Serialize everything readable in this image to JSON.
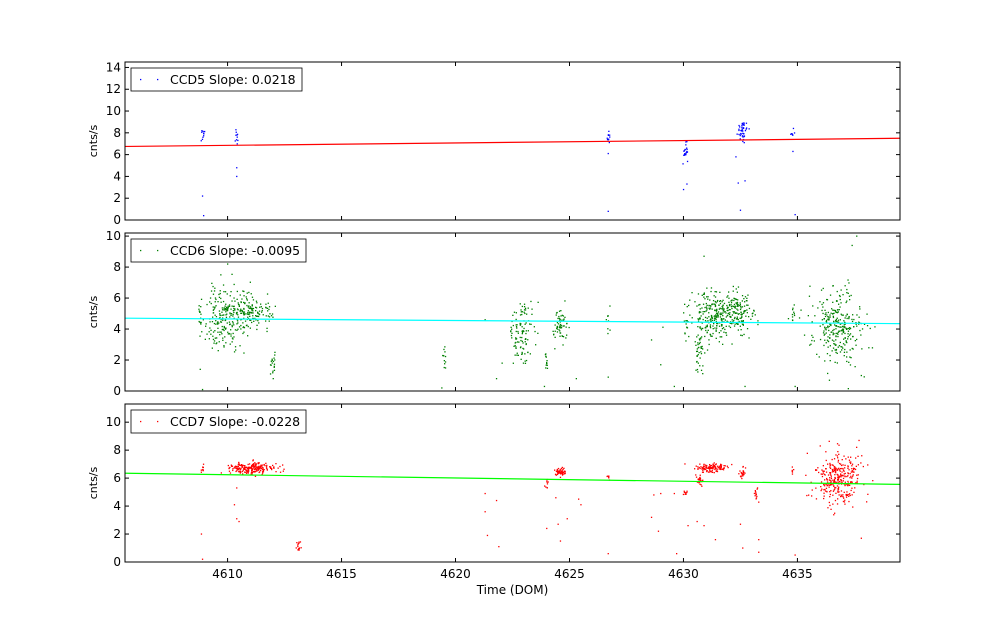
{
  "chart_data": [
    {
      "type": "scatter",
      "xlim": [
        4605.5,
        4639.5
      ],
      "ylim": [
        0,
        14.5
      ],
      "xticks": [
        4610,
        4615,
        4620,
        4625,
        4630,
        4635
      ],
      "yticks": [
        0,
        2,
        4,
        6,
        8,
        10,
        12,
        14
      ],
      "show_xtick_labels": false,
      "xlabel": "",
      "ylabel": "cnts/s",
      "legend": "CCD5 Slope: 0.0218",
      "legend_position": "top-left",
      "point_color": "#0000ff",
      "fit_color": "#ff0000",
      "fit_line": {
        "x": [
          4605.5,
          4639.5
        ],
        "y": [
          6.75,
          7.5
        ]
      },
      "clusters": [
        {
          "x": 4608.9,
          "xspread": 0.05,
          "y": 7.9,
          "yspread": 0.35,
          "n": 10
        },
        {
          "x": 4610.4,
          "xspread": 0.05,
          "y": 7.5,
          "yspread": 0.45,
          "n": 10
        },
        {
          "x": 4626.7,
          "xspread": 0.05,
          "y": 7.4,
          "yspread": 0.3,
          "n": 10
        },
        {
          "x": 4630.1,
          "xspread": 0.06,
          "y": 6.4,
          "yspread": 0.45,
          "n": 22
        },
        {
          "x": 4632.6,
          "xspread": 0.12,
          "y": 8.3,
          "yspread": 0.45,
          "n": 45
        },
        {
          "x": 4634.8,
          "xspread": 0.04,
          "y": 7.8,
          "yspread": 0.3,
          "n": 7
        }
      ],
      "outliers": [
        [
          4608.9,
          2.2
        ],
        [
          4608.95,
          0.4
        ],
        [
          4610.4,
          4.8
        ],
        [
          4610.4,
          4.0
        ],
        [
          4626.7,
          6.1
        ],
        [
          4626.7,
          0.8
        ],
        [
          4630.0,
          2.8
        ],
        [
          4630.15,
          3.3
        ],
        [
          4632.3,
          5.8
        ],
        [
          4632.4,
          3.4
        ],
        [
          4632.5,
          0.9
        ],
        [
          4632.7,
          3.6
        ],
        [
          4634.8,
          6.3
        ],
        [
          4634.9,
          0.5
        ]
      ]
    },
    {
      "type": "scatter",
      "xlim": [
        4605.5,
        4639.5
      ],
      "ylim": [
        0,
        10.2
      ],
      "xticks": [
        4610,
        4615,
        4620,
        4625,
        4630,
        4635
      ],
      "yticks": [
        0,
        2,
        4,
        6,
        8,
        10
      ],
      "show_xtick_labels": false,
      "xlabel": "",
      "ylabel": "cnts/s",
      "legend": "CCD6 Slope: -0.0095",
      "legend_position": "top-left",
      "point_color": "#008000",
      "fit_color": "#00ffff",
      "fit_line": {
        "x": [
          4605.5,
          4639.5
        ],
        "y": [
          4.7,
          4.35
        ]
      },
      "clusters": [
        {
          "x": 4608.8,
          "xspread": 0.05,
          "y": 5.0,
          "yspread": 0.6,
          "n": 12
        },
        {
          "x": 4609.9,
          "xspread": 0.45,
          "y": 4.6,
          "yspread": 1.1,
          "n": 200
        },
        {
          "x": 4611.0,
          "xspread": 0.45,
          "y": 5.1,
          "yspread": 0.6,
          "n": 160
        },
        {
          "x": 4612.0,
          "xspread": 0.06,
          "y": 1.6,
          "yspread": 0.45,
          "n": 18
        },
        {
          "x": 4619.5,
          "xspread": 0.04,
          "y": 2.0,
          "yspread": 0.4,
          "n": 12
        },
        {
          "x": 4622.9,
          "xspread": 0.3,
          "y": 3.8,
          "yspread": 1.0,
          "n": 110
        },
        {
          "x": 4624.0,
          "xspread": 0.04,
          "y": 1.9,
          "yspread": 0.4,
          "n": 12
        },
        {
          "x": 4624.6,
          "xspread": 0.15,
          "y": 4.2,
          "yspread": 0.5,
          "n": 60
        },
        {
          "x": 4626.7,
          "xspread": 0.04,
          "y": 4.5,
          "yspread": 0.4,
          "n": 8
        },
        {
          "x": 4630.1,
          "xspread": 0.05,
          "y": 4.3,
          "yspread": 0.4,
          "n": 12
        },
        {
          "x": 4630.7,
          "xspread": 0.1,
          "y": 2.6,
          "yspread": 0.6,
          "n": 40
        },
        {
          "x": 4631.3,
          "xspread": 0.5,
          "y": 4.8,
          "yspread": 0.75,
          "n": 250
        },
        {
          "x": 4632.4,
          "xspread": 0.35,
          "y": 5.0,
          "yspread": 0.7,
          "n": 140
        },
        {
          "x": 4634.8,
          "xspread": 0.04,
          "y": 5.1,
          "yspread": 0.4,
          "n": 10
        },
        {
          "x": 4636.8,
          "xspread": 0.55,
          "y": 4.2,
          "yspread": 1.2,
          "n": 300
        }
      ],
      "outliers": [
        [
          4608.8,
          1.4
        ],
        [
          4608.9,
          0.1
        ],
        [
          4610.0,
          8.2
        ],
        [
          4612.0,
          0.8
        ],
        [
          4619.4,
          0.2
        ],
        [
          4621.3,
          4.6
        ],
        [
          4621.8,
          0.8
        ],
        [
          4623.9,
          0.3
        ],
        [
          4625.3,
          0.8
        ],
        [
          4626.7,
          0.9
        ],
        [
          4628.6,
          3.3
        ],
        [
          4629.0,
          1.7
        ],
        [
          4629.6,
          0.3
        ],
        [
          4630.9,
          8.7
        ],
        [
          4632.7,
          0.3
        ],
        [
          4634.9,
          0.3
        ],
        [
          4637.4,
          9.4
        ],
        [
          4637.6,
          10.0
        ],
        [
          4637.8,
          1.0
        ]
      ]
    },
    {
      "type": "scatter",
      "xlim": [
        4605.5,
        4639.5
      ],
      "ylim": [
        0,
        11.3
      ],
      "xticks": [
        4610,
        4615,
        4620,
        4625,
        4630,
        4635
      ],
      "yticks": [
        0,
        2,
        4,
        6,
        8,
        10
      ],
      "show_xtick_labels": true,
      "xlabel": "Time (DOM)",
      "ylabel": "cnts/s",
      "legend": "CCD7 Slope: -0.0228",
      "legend_position": "top-left",
      "point_color": "#ff0000",
      "fit_color": "#00ff00",
      "fit_line": {
        "x": [
          4605.5,
          4639.5
        ],
        "y": [
          6.35,
          5.55
        ]
      },
      "clusters": [
        {
          "x": 4608.9,
          "xspread": 0.04,
          "y": 6.6,
          "yspread": 0.15,
          "n": 8
        },
        {
          "x": 4611.0,
          "xspread": 0.5,
          "y": 6.7,
          "yspread": 0.2,
          "n": 220
        },
        {
          "x": 4613.1,
          "xspread": 0.06,
          "y": 1.1,
          "yspread": 0.25,
          "n": 14
        },
        {
          "x": 4624.0,
          "xspread": 0.04,
          "y": 5.5,
          "yspread": 0.3,
          "n": 10
        },
        {
          "x": 4624.6,
          "xspread": 0.12,
          "y": 6.4,
          "yspread": 0.15,
          "n": 60
        },
        {
          "x": 4626.7,
          "xspread": 0.04,
          "y": 6.0,
          "yspread": 0.2,
          "n": 6
        },
        {
          "x": 4630.1,
          "xspread": 0.05,
          "y": 4.9,
          "yspread": 0.12,
          "n": 10
        },
        {
          "x": 4630.7,
          "xspread": 0.1,
          "y": 5.9,
          "yspread": 0.25,
          "n": 30
        },
        {
          "x": 4631.2,
          "xspread": 0.35,
          "y": 6.75,
          "yspread": 0.15,
          "n": 130
        },
        {
          "x": 4632.6,
          "xspread": 0.08,
          "y": 6.4,
          "yspread": 0.2,
          "n": 25
        },
        {
          "x": 4633.2,
          "xspread": 0.05,
          "y": 4.9,
          "yspread": 0.3,
          "n": 14
        },
        {
          "x": 4634.8,
          "xspread": 0.04,
          "y": 6.4,
          "yspread": 0.2,
          "n": 6
        },
        {
          "x": 4636.8,
          "xspread": 0.55,
          "y": 6.0,
          "yspread": 0.9,
          "n": 320
        }
      ],
      "outliers": [
        [
          4608.85,
          2.0
        ],
        [
          4608.9,
          0.2
        ],
        [
          4610.4,
          5.3
        ],
        [
          4610.3,
          4.1
        ],
        [
          4610.4,
          3.1
        ],
        [
          4610.5,
          2.9
        ],
        [
          4621.3,
          4.9
        ],
        [
          4621.3,
          3.6
        ],
        [
          4621.4,
          1.9
        ],
        [
          4621.8,
          4.4
        ],
        [
          4621.9,
          1.1
        ],
        [
          4624.0,
          2.4
        ],
        [
          4624.4,
          4.6
        ],
        [
          4624.5,
          2.7
        ],
        [
          4624.6,
          1.5
        ],
        [
          4624.9,
          3.1
        ],
        [
          4625.4,
          4.5
        ],
        [
          4625.5,
          4.1
        ],
        [
          4626.7,
          0.6
        ],
        [
          4628.6,
          3.2
        ],
        [
          4628.7,
          4.8
        ],
        [
          4628.9,
          2.2
        ],
        [
          4629.0,
          4.9
        ],
        [
          4629.6,
          4.9
        ],
        [
          4629.7,
          0.6
        ],
        [
          4630.2,
          2.6
        ],
        [
          4630.6,
          2.9
        ],
        [
          4630.9,
          2.6
        ],
        [
          4631.4,
          1.6
        ],
        [
          4632.5,
          2.7
        ],
        [
          4632.6,
          1.0
        ],
        [
          4633.3,
          1.6
        ],
        [
          4633.3,
          0.7
        ],
        [
          4634.9,
          0.5
        ],
        [
          4636.0,
          8.3
        ],
        [
          4637.7,
          8.7
        ],
        [
          4637.8,
          1.7
        ]
      ]
    }
  ]
}
